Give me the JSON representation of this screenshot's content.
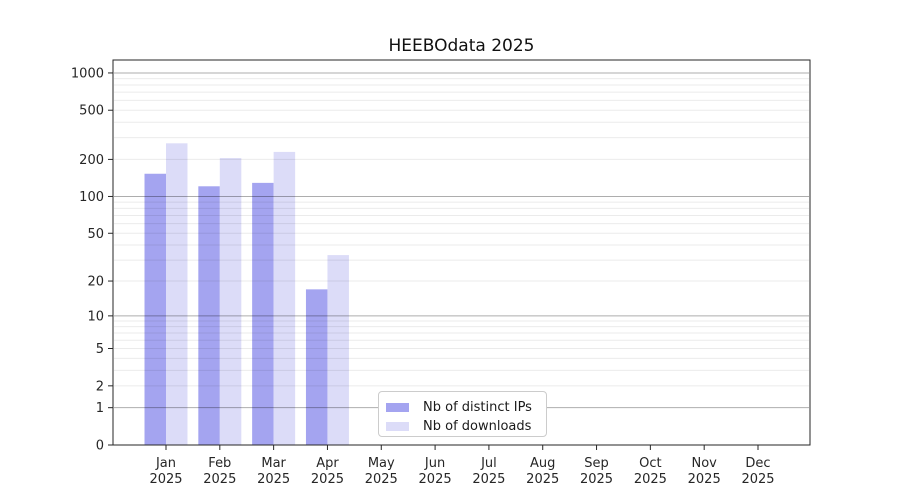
{
  "title": "HEEBOdata 2025",
  "chart_data": {
    "type": "bar",
    "title": "HEEBOdata 2025",
    "yscale": "log1p",
    "ylim": [
      0,
      1290
    ],
    "grid": "horizontal major and minor, drawn over bars",
    "legend_position": "lower center",
    "categories": [
      "Jan 2025",
      "Feb 2025",
      "Mar 2025",
      "Apr 2025",
      "May 2025",
      "Jun 2025",
      "Jul 2025",
      "Aug 2025",
      "Sep 2025",
      "Oct 2025",
      "Nov 2025",
      "Dec 2025"
    ],
    "yticks": [
      0,
      1,
      2,
      5,
      10,
      20,
      50,
      100,
      200,
      500,
      1000
    ],
    "series": [
      {
        "name": "Nb of distinct IPs",
        "color": "#a4a4f0",
        "values": [
          153,
          121,
          129,
          17,
          0,
          0,
          0,
          0,
          0,
          0,
          0,
          0
        ]
      },
      {
        "name": "Nb of downloads",
        "color": "#dcdcf8",
        "values": [
          270,
          205,
          230,
          33,
          0,
          0,
          0,
          0,
          0,
          0,
          0,
          0
        ]
      }
    ]
  }
}
